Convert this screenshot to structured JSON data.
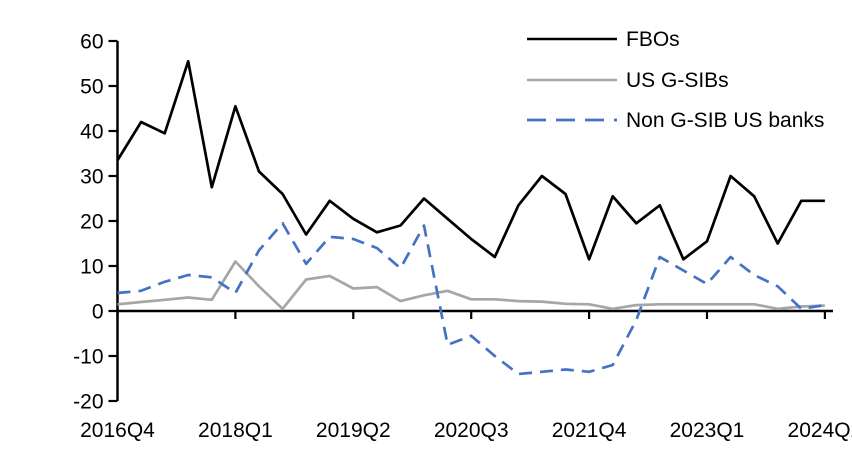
{
  "chart_data": {
    "type": "line",
    "title": "",
    "xlabel": "",
    "ylabel": "",
    "ylim": [
      -20,
      60
    ],
    "y_tick_step": 10,
    "y_ticks": [
      60,
      50,
      40,
      30,
      20,
      10,
      0,
      -10,
      -20
    ],
    "grid": false,
    "legend_position": "top-right",
    "x_tick_interval": 5,
    "x_tick_labels": [
      "2016Q4",
      "2018Q1",
      "2019Q2",
      "2020Q3",
      "2021Q4",
      "2023Q1",
      "2024Q2"
    ],
    "x_categories": [
      "2016Q4",
      "2017Q1",
      "2017Q2",
      "2017Q3",
      "2017Q4",
      "2018Q1",
      "2018Q2",
      "2018Q3",
      "2018Q4",
      "2019Q1",
      "2019Q2",
      "2019Q3",
      "2019Q4",
      "2020Q1",
      "2020Q2",
      "2020Q3",
      "2020Q4",
      "2021Q1",
      "2021Q2",
      "2021Q3",
      "2021Q4",
      "2022Q1",
      "2022Q2",
      "2022Q3",
      "2022Q4",
      "2023Q1",
      "2023Q2",
      "2023Q3",
      "2023Q4",
      "2024Q1",
      "2024Q2"
    ],
    "series": [
      {
        "name": "FBOs",
        "color": "#000000",
        "style": "solid",
        "values": [
          33.5,
          42,
          39.5,
          55.5,
          27.5,
          45.5,
          31,
          26,
          17,
          24.5,
          20.5,
          17.5,
          19,
          25,
          20.5,
          16,
          12,
          23.5,
          30,
          26,
          11.5,
          25.5,
          19.5,
          23.5,
          11.5,
          15.5,
          30,
          25.5,
          15,
          24.5,
          24.5
        ]
      },
      {
        "name": "US G-SIBs",
        "color": "#a6a6a6",
        "style": "solid",
        "values": [
          1.5,
          2,
          2.5,
          3,
          2.5,
          11,
          5.5,
          0.5,
          7,
          7.8,
          5,
          5.3,
          2.2,
          3.5,
          4.5,
          2.6,
          2.6,
          2.2,
          2.1,
          1.6,
          1.5,
          0.5,
          1.3,
          1.5,
          1.5,
          1.5,
          1.5,
          1.5,
          0.5,
          1,
          1.2
        ]
      },
      {
        "name": "Non G-SIB US banks",
        "color": "#4472c4",
        "style": "dashed",
        "values": [
          4,
          4.5,
          6.5,
          8,
          7.5,
          4,
          13.5,
          19.5,
          10.5,
          16.5,
          16,
          14,
          9.5,
          19,
          -7.5,
          -5.5,
          -10,
          -14,
          -13.5,
          -13,
          -13.5,
          -12,
          -2,
          12,
          9,
          6,
          12,
          8,
          5.5,
          0.5,
          1.3
        ]
      }
    ]
  }
}
